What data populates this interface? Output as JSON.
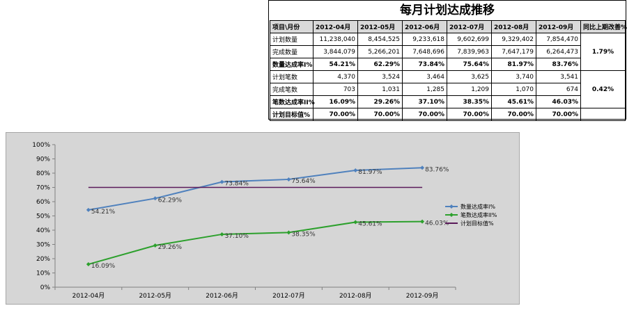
{
  "table": {
    "title": "每月计划达成推移",
    "header": [
      "项目\\月份",
      "2012-04月",
      "2012-05月",
      "2012-06月",
      "2012-07月",
      "2012-08月",
      "2012-09月",
      "同比上期改善%"
    ],
    "rows": [
      {
        "label": "计划数量",
        "values": [
          "11,238,040",
          "8,454,525",
          "9,233,618",
          "9,602,699",
          "9,329,402",
          "7,854,470"
        ],
        "bold": false
      },
      {
        "label": "完成数量",
        "values": [
          "3,844,079",
          "5,266,201",
          "7,648,696",
          "7,839,963",
          "7,647,179",
          "6,264,473"
        ],
        "bold": false
      },
      {
        "label": "数量达成率I%",
        "values": [
          "54.21%",
          "62.29%",
          "73.84%",
          "75.64%",
          "81.97%",
          "83.76%"
        ],
        "bold": true
      },
      {
        "label": "计划笔数",
        "values": [
          "4,370",
          "3,524",
          "3,464",
          "3,625",
          "3,740",
          "3,541"
        ],
        "bold": false
      },
      {
        "label": "完成笔数",
        "values": [
          "703",
          "1,031",
          "1,285",
          "1,209",
          "1,070",
          "674"
        ],
        "bold": false
      },
      {
        "label": "笔数达成率II%",
        "values": [
          "16.09%",
          "29.26%",
          "37.10%",
          "38.35%",
          "45.61%",
          "46.03%"
        ],
        "bold": true
      },
      {
        "label": "计划目标值%",
        "values": [
          "70.00%",
          "70.00%",
          "70.00%",
          "70.00%",
          "70.00%",
          "70.00%"
        ],
        "bold": true
      }
    ],
    "yoy": [
      "1.79%",
      "0.42%"
    ]
  },
  "chart_data": {
    "type": "line",
    "categories": [
      "2012-04月",
      "2012-05月",
      "2012-06月",
      "2012-07月",
      "2012-08月",
      "2012-09月"
    ],
    "ylim": [
      0,
      100
    ],
    "yticks": [
      "0%",
      "10%",
      "20%",
      "30%",
      "40%",
      "50%",
      "60%",
      "70%",
      "80%",
      "90%",
      "100%"
    ],
    "grid": false,
    "legend": "right",
    "series": [
      {
        "name": "数量达成率I%",
        "color": "#4f81bd",
        "marker": true,
        "values": [
          54.21,
          62.29,
          73.84,
          75.64,
          81.97,
          83.76
        ],
        "labels": [
          "54.21%",
          "62.29%",
          "73.84%",
          "75.64%",
          "81.97%",
          "83.76%"
        ]
      },
      {
        "name": "笔数达成率II%",
        "color": "#2ca02c",
        "marker": true,
        "values": [
          16.09,
          29.26,
          37.1,
          38.35,
          45.61,
          46.03
        ],
        "labels": [
          "16.09%",
          "29.26%",
          "37.10%",
          "38.35%",
          "45.61%",
          "46.03%"
        ]
      },
      {
        "name": "计划目标值%",
        "color": "#5a1a5a",
        "marker": false,
        "values": [
          70,
          70,
          70,
          70,
          70,
          70
        ],
        "labels": []
      }
    ]
  }
}
